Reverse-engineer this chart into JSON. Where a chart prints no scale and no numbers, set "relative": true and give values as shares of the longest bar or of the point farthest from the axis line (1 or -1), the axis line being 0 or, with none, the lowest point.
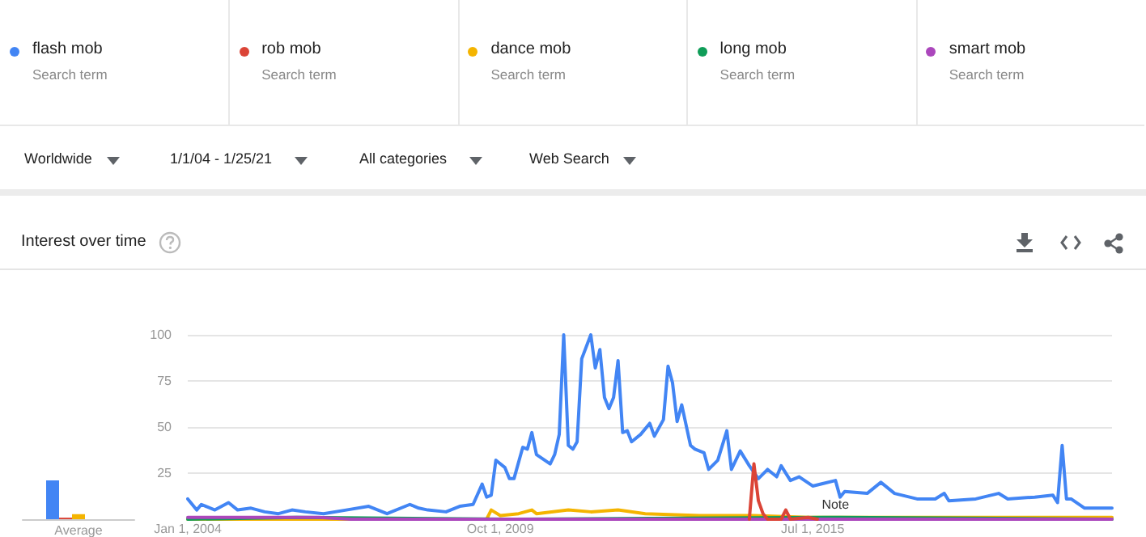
{
  "chart_data": [
    {
      "type": "bar",
      "categories": [
        "Average"
      ],
      "relative": true,
      "series": [
        {
          "color": "#4285f4",
          "values": [
            1
          ]
        },
        {
          "color": "#db4437",
          "values": [
            0.04
          ]
        },
        {
          "color": "#f4b400",
          "values": [
            0.13
          ]
        },
        {
          "color": "#0f9d58",
          "values": [
            null
          ]
        },
        {
          "color": "#ab47bc",
          "values": [
            null
          ]
        }
      ]
    },
    {
      "type": "line",
      "title": "Interest over time",
      "legend": "top",
      "grid": "y",
      "marker": "none",
      "line_style": "solid",
      "xlim": [
        "2004-01",
        "2021-01"
      ],
      "xticks": [
        {
          "value": "2004-01",
          "label": "Jan 1, 2004"
        },
        {
          "value": "2009-10",
          "label": "Oct 1, 2009"
        },
        {
          "value": "2015-07",
          "label": "Jul 1, 2015"
        }
      ],
      "ylim": [
        0,
        100
      ],
      "yticks": [
        25,
        50,
        75,
        100
      ],
      "annotations": [
        "Search term",
        "Search term",
        "Search term",
        "Search term",
        "Search term",
        "Worldwide",
        "1/1/04 - 1/25/21",
        "All categories",
        "Web Search",
        {
          "text": "Note",
          "x": "2015-12",
          "y": 1
        }
      ],
      "series": [
        {
          "name": "flash mob",
          "color": "#4285f4",
          "x": [
            "2004-01",
            "2004-03",
            "2004-04",
            "2004-07",
            "2004-10",
            "2004-12",
            "2005-03",
            "2005-06",
            "2005-09",
            "2005-12",
            "2006-03",
            "2006-07",
            "2006-12",
            "2007-05",
            "2007-09",
            "2008-02",
            "2008-04",
            "2008-06",
            "2008-10",
            "2009-01",
            "2009-04",
            "2009-06",
            "2009-07",
            "2009-08",
            "2009-09",
            "2009-11",
            "2009-12",
            "2010-01",
            "2010-03",
            "2010-04",
            "2010-05",
            "2010-06",
            "2010-09",
            "2010-10",
            "2010-11",
            "2010-12",
            "2011-01",
            "2011-02",
            "2011-03",
            "2011-04",
            "2011-06",
            "2011-07",
            "2011-08",
            "2011-09",
            "2011-10",
            "2011-11",
            "2011-12",
            "2012-01",
            "2012-02",
            "2012-03",
            "2012-05",
            "2012-07",
            "2012-08",
            "2012-10",
            "2012-11",
            "2012-12",
            "2013-01",
            "2013-02",
            "2013-04",
            "2013-05",
            "2013-07",
            "2013-08",
            "2013-10",
            "2013-12",
            "2014-01",
            "2014-03",
            "2014-05",
            "2014-07",
            "2014-09",
            "2014-11",
            "2014-12",
            "2015-02",
            "2015-04",
            "2015-07",
            "2015-12",
            "2016-01",
            "2016-02",
            "2016-07",
            "2016-10",
            "2017-01",
            "2017-06",
            "2017-10",
            "2017-12",
            "2018-01",
            "2018-07",
            "2018-12",
            "2019-02",
            "2019-08",
            "2019-12",
            "2020-01",
            "2020-02",
            "2020-03",
            "2020-04",
            "2020-07",
            "2021-01"
          ],
          "values": [
            11,
            5,
            8,
            5,
            9,
            5,
            6,
            4,
            3,
            5,
            4,
            3,
            5,
            7,
            3,
            8,
            6,
            5,
            4,
            7,
            8,
            19,
            12,
            13,
            32,
            28,
            22,
            22,
            39,
            38,
            47,
            35,
            30,
            35,
            46,
            100,
            40,
            38,
            42,
            87,
            100,
            82,
            92,
            66,
            60,
            66,
            86,
            47,
            48,
            42,
            46,
            52,
            45,
            54,
            83,
            74,
            53,
            62,
            40,
            38,
            36,
            27,
            32,
            48,
            27,
            37,
            29,
            22,
            27,
            23,
            29,
            21,
            23,
            18,
            21,
            12,
            15,
            14,
            20,
            14,
            11,
            11,
            14,
            10,
            11,
            14,
            11,
            12,
            13,
            9,
            40,
            11,
            11,
            6,
            6
          ]
        },
        {
          "name": "rob mob",
          "color": "#db4437",
          "x": [
            "2014-05",
            "2014-06",
            "2014-07",
            "2014-08",
            "2014-09",
            "2014-12",
            "2015-01",
            "2015-02",
            "2015-06",
            "2015-08"
          ],
          "values": [
            0,
            30,
            10,
            3,
            0,
            0,
            5,
            0,
            1,
            0
          ]
        },
        {
          "name": "dance mob",
          "color": "#f4b400",
          "x": [
            "2004-01",
            "2009-07",
            "2009-08",
            "2009-10",
            "2010-02",
            "2010-05",
            "2010-06",
            "2011-01",
            "2011-06",
            "2011-12",
            "2012-06",
            "2013-06",
            "2014-06",
            "2015-06",
            "2016-06",
            "2021-01"
          ],
          "values": [
            0,
            0,
            5,
            2,
            3,
            5,
            3,
            5,
            4,
            5,
            3,
            2,
            2,
            1,
            1,
            1
          ]
        },
        {
          "name": "long mob",
          "color": "#0f9d58",
          "x": [
            "2004-01",
            "2006-01",
            "2010-01",
            "2016-01",
            "2021-01"
          ],
          "values": [
            0,
            1,
            0,
            1,
            0
          ]
        },
        {
          "name": "smart mob",
          "color": "#ab47bc",
          "x": [
            "2004-01",
            "2006-06",
            "2007-01",
            "2021-01"
          ],
          "values": [
            1,
            1,
            0,
            0
          ]
        }
      ]
    }
  ]
}
